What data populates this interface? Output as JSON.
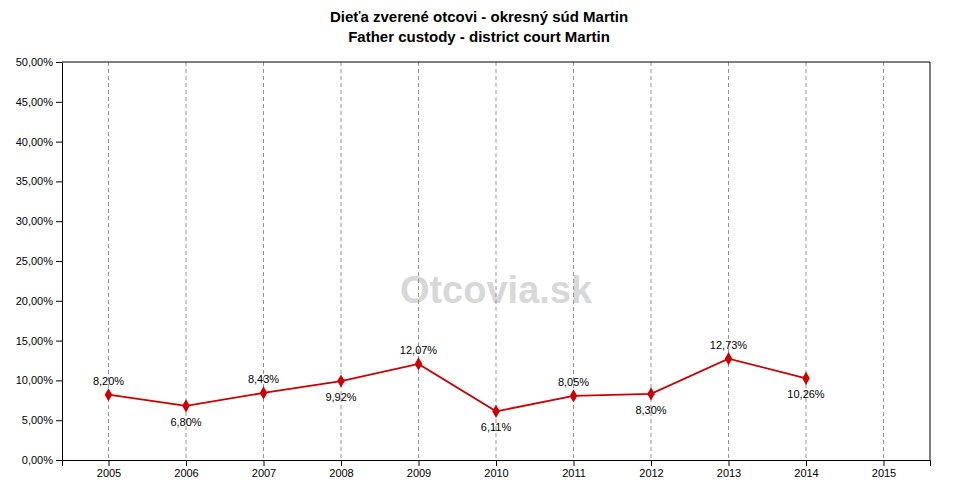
{
  "chart_data": {
    "type": "line",
    "title": "Dieťa zverené otcovi - okresný súd Martin",
    "subtitle": "Father custody - district court Martin",
    "x": [
      2005,
      2006,
      2007,
      2008,
      2009,
      2010,
      2011,
      2012,
      2013,
      2014
    ],
    "values": [
      0.082,
      0.068,
      0.0843,
      0.0992,
      0.1207,
      0.0611,
      0.0805,
      0.083,
      0.1273,
      0.1026
    ],
    "value_labels": [
      "8,20%",
      "6,80%",
      "8,43%",
      "9,92%",
      "12,07%",
      "6,11%",
      "8,05%",
      "8,30%",
      "12,73%",
      "10,26%"
    ],
    "color": "#cc0000",
    "marker": "diamond",
    "line_style": "solid",
    "data_labels": true,
    "grid": "x",
    "xlim": [
      2004.4,
      2015.6
    ],
    "xticks": [
      2005,
      2006,
      2007,
      2008,
      2009,
      2010,
      2011,
      2012,
      2013,
      2014,
      2015
    ],
    "ylim": [
      0.0,
      0.5
    ],
    "yticks": [
      {
        "value": 0.0,
        "label": "0,00%"
      },
      {
        "value": 0.05,
        "label": "5,00%"
      },
      {
        "value": 0.1,
        "label": "10,00%"
      },
      {
        "value": 0.15,
        "label": "15,00%"
      },
      {
        "value": 0.2,
        "label": "20,00%"
      },
      {
        "value": 0.25,
        "label": "25,00%"
      },
      {
        "value": 0.3,
        "label": "30,00%"
      },
      {
        "value": 0.35,
        "label": "35,00%"
      },
      {
        "value": 0.4,
        "label": "40,00%"
      },
      {
        "value": 0.45,
        "label": "45,00%"
      },
      {
        "value": 0.5,
        "label": "50,00%"
      }
    ],
    "annotations": [
      "Otcovia.sk"
    ]
  }
}
